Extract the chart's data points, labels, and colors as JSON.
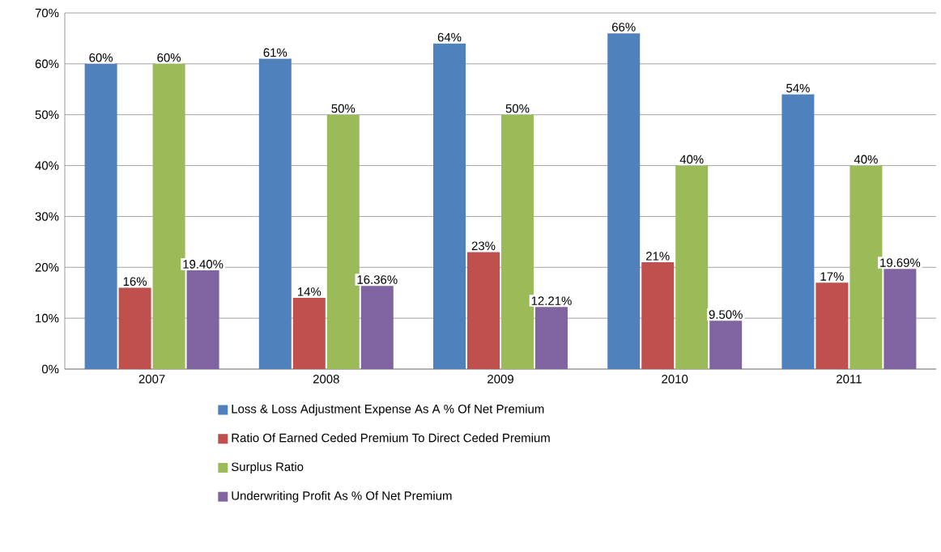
{
  "chart_data": {
    "type": "bar",
    "categories": [
      "2007",
      "2008",
      "2009",
      "2010",
      "2011"
    ],
    "series": [
      {
        "name": "Loss & Loss Adjustment Expense As A % Of Net Premium",
        "color": "#4f81bd",
        "values": [
          60,
          61,
          64,
          66,
          54
        ],
        "value_labels": [
          "60%",
          "61%",
          "64%",
          "66%",
          "54%"
        ]
      },
      {
        "name": "Ratio Of Earned Ceded Premium To Direct Ceded Premium",
        "color": "#c0504d",
        "values": [
          16,
          14,
          23,
          21,
          17
        ],
        "value_labels": [
          "16%",
          "14%",
          "23%",
          "21%",
          "17%"
        ]
      },
      {
        "name": "Surplus Ratio",
        "color": "#9bbb59",
        "values": [
          60,
          50,
          50,
          40,
          40
        ],
        "value_labels": [
          "60%",
          "50%",
          "50%",
          "40%",
          "40%"
        ]
      },
      {
        "name": "Underwriting Profit As % Of Net Premium",
        "color": "#8064a2",
        "values": [
          19.4,
          16.36,
          12.21,
          9.5,
          19.69
        ],
        "value_labels": [
          "19.40%",
          "16.36%",
          "12.21%",
          "9.50%",
          "19.69%"
        ]
      }
    ],
    "ylim": [
      0,
      70
    ],
    "yticks": [
      {
        "value": 0,
        "label": "0%"
      },
      {
        "value": 10,
        "label": "10%"
      },
      {
        "value": 20,
        "label": "20%"
      },
      {
        "value": 30,
        "label": "30%"
      },
      {
        "value": 40,
        "label": "40%"
      },
      {
        "value": 50,
        "label": "50%"
      },
      {
        "value": 60,
        "label": "60%"
      },
      {
        "value": 70,
        "label": "70%"
      }
    ],
    "grid": "y",
    "legend": "bottom"
  }
}
